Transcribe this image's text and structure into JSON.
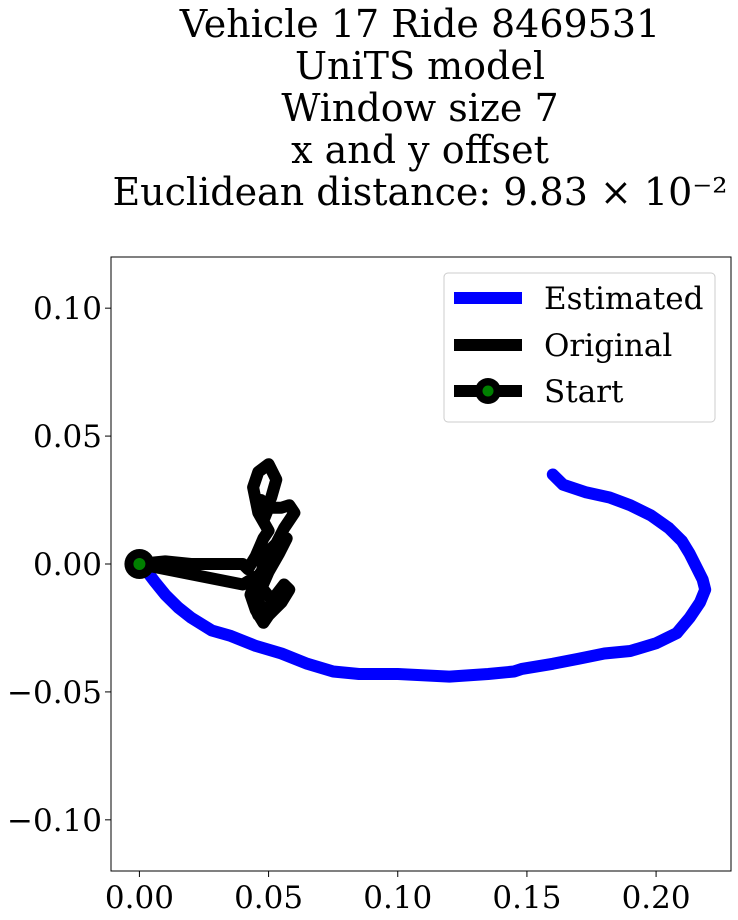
{
  "chart_data": {
    "type": "line",
    "title_lines": [
      "Vehicle 17 Ride 8469531",
      "UniTS model",
      "Window size 7",
      "x and y offset",
      "Euclidean distance: 9.83 × 10⁻²"
    ],
    "xlabel": "",
    "ylabel": "",
    "xlim": [
      -0.011,
      0.229
    ],
    "ylim": [
      -0.12,
      0.12
    ],
    "x_ticks": [
      "0.00",
      "0.05",
      "0.10",
      "0.15",
      "0.20"
    ],
    "x_tick_values": [
      0.0,
      0.05,
      0.1,
      0.15,
      0.2
    ],
    "y_ticks": [
      "0.10",
      "0.05",
      "0.00",
      "−0.05",
      "−0.10"
    ],
    "y_tick_values": [
      0.1,
      0.05,
      0.0,
      -0.05,
      -0.1
    ],
    "grid": false,
    "legend_position": "upper right",
    "series": [
      {
        "name": "Estimated",
        "color": "#0000ff",
        "x": [
          0.0,
          0.003,
          0.006,
          0.01,
          0.015,
          0.02,
          0.028,
          0.035,
          0.045,
          0.055,
          0.065,
          0.075,
          0.085,
          0.1,
          0.12,
          0.135,
          0.145,
          0.148,
          0.16,
          0.17,
          0.18,
          0.19,
          0.2,
          0.208,
          0.213,
          0.217,
          0.219,
          0.218,
          0.216,
          0.213,
          0.21,
          0.205,
          0.198,
          0.19,
          0.182,
          0.173,
          0.164,
          0.16
        ],
        "y": [
          0.0,
          -0.003,
          -0.007,
          -0.012,
          -0.017,
          -0.021,
          -0.026,
          -0.028,
          -0.032,
          -0.035,
          -0.039,
          -0.042,
          -0.043,
          -0.043,
          -0.044,
          -0.043,
          -0.042,
          -0.041,
          -0.039,
          -0.037,
          -0.035,
          -0.034,
          -0.031,
          -0.027,
          -0.021,
          -0.015,
          -0.01,
          -0.006,
          -0.002,
          0.004,
          0.009,
          0.014,
          0.019,
          0.023,
          0.026,
          0.028,
          0.031,
          0.035
        ]
      },
      {
        "name": "Original",
        "color": "#000000",
        "x": [
          0.0,
          0.01,
          0.02,
          0.03,
          0.04,
          0.042,
          0.045,
          0.048,
          0.05,
          0.046,
          0.044,
          0.046,
          0.05,
          0.053,
          0.051,
          0.048,
          0.046,
          0.047,
          0.049,
          0.048,
          0.05,
          0.055,
          0.058,
          0.06,
          0.056,
          0.053,
          0.05,
          0.048,
          0.047,
          0.045,
          0.044,
          0.046,
          0.05,
          0.053,
          0.056,
          0.058,
          0.055,
          0.052,
          0.05,
          0.048,
          0.045,
          0.043,
          0.045,
          0.048,
          0.051,
          0.055,
          0.057,
          0.054,
          0.05,
          0.047,
          0.046,
          0.049,
          0.052,
          0.048,
          0.045,
          0.04,
          0.03,
          0.02,
          0.01,
          0.0
        ],
        "y": [
          0.0,
          0.001,
          0.0,
          0.0,
          0.0,
          -0.002,
          0.003,
          0.01,
          0.013,
          0.02,
          0.03,
          0.036,
          0.039,
          0.033,
          0.026,
          0.02,
          0.025,
          0.025,
          0.02,
          0.017,
          0.022,
          0.022,
          0.023,
          0.02,
          0.014,
          0.008,
          0.005,
          0.0,
          -0.005,
          -0.01,
          -0.015,
          -0.02,
          -0.017,
          -0.012,
          -0.008,
          -0.01,
          -0.015,
          -0.018,
          -0.02,
          -0.023,
          -0.018,
          -0.012,
          -0.006,
          -0.002,
          0.003,
          0.008,
          0.01,
          0.004,
          -0.003,
          -0.01,
          -0.015,
          -0.019,
          -0.015,
          -0.01,
          -0.005,
          -0.008,
          -0.006,
          -0.004,
          -0.002,
          0.0
        ]
      }
    ],
    "start": {
      "name": "Start",
      "x": 0.0,
      "y": 0.0,
      "fill": "#008000",
      "edge": "#000000"
    }
  }
}
